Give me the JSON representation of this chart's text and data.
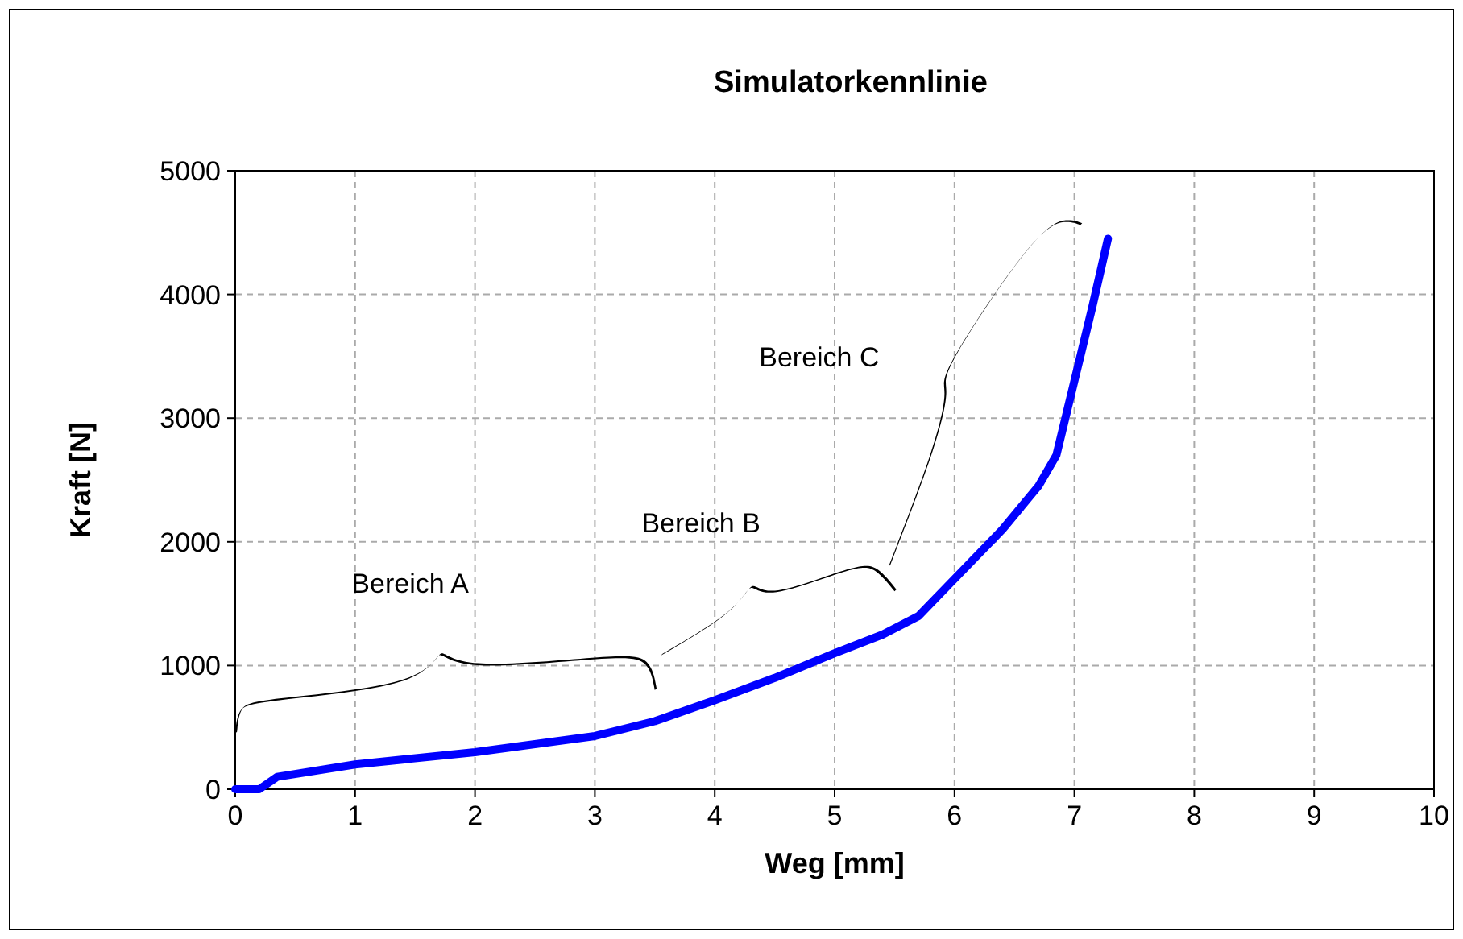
{
  "chart_data": {
    "type": "line",
    "title": "Simulatorkennlinie",
    "xlabel": "Weg [mm]",
    "ylabel": "Kraft [N]",
    "x": [
      0,
      0.2,
      0.35,
      1,
      2,
      3,
      3.5,
      4,
      4.5,
      5,
      5.4,
      5.7,
      6,
      6.4,
      6.7,
      6.85,
      7,
      7.15,
      7.28
    ],
    "series": [
      {
        "color": "#0000ff",
        "values": [
          0,
          0,
          100,
          200,
          300,
          430,
          550,
          720,
          900,
          1100,
          1250,
          1400,
          1700,
          2100,
          2450,
          2700,
          3300,
          3900,
          4450
        ]
      }
    ],
    "xlim": [
      0,
      10
    ],
    "xticks": [
      0,
      1,
      2,
      3,
      4,
      5,
      6,
      7,
      8,
      9,
      10
    ],
    "ylim": [
      0,
      5000
    ],
    "yticks": [
      0,
      1000,
      2000,
      3000,
      4000,
      5000
    ],
    "grid": true,
    "marker": "none",
    "line_style": "solid",
    "annotations": [
      "Bereich A",
      "Bereich B",
      "Bereich C"
    ]
  }
}
